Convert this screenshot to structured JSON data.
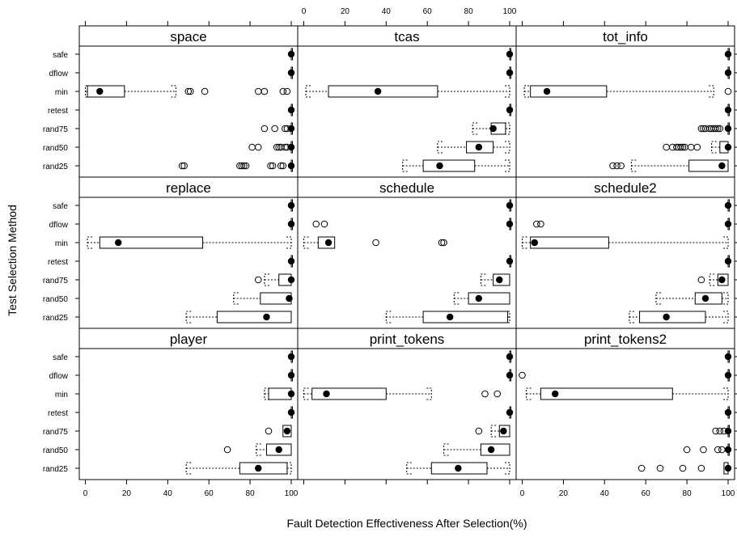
{
  "chart_data": {
    "type": "boxplot",
    "xlabel": "Fault Detection Effectiveness After Selection(%)",
    "ylabel": "Test Selection Method",
    "xlim": [
      -3,
      103
    ],
    "x_ticks": [
      0,
      20,
      40,
      60,
      80,
      100
    ],
    "methods": [
      "safe",
      "dflow",
      "min",
      "retest",
      "rand75",
      "rand50",
      "rand25"
    ],
    "legend": "none",
    "grid": false,
    "panels": [
      {
        "title": "space",
        "boxes": [
          {
            "method": "safe",
            "median": 100,
            "q1": 100,
            "q3": 100,
            "whisker_low": 100,
            "whisker_high": 100,
            "outliers": []
          },
          {
            "method": "dflow",
            "median": 100,
            "q1": 100,
            "q3": 100,
            "whisker_low": 100,
            "whisker_high": 100,
            "outliers": []
          },
          {
            "method": "min",
            "median": 7,
            "q1": 1,
            "q3": 19,
            "whisker_low": 0,
            "whisker_high": 44,
            "outliers": [
              50,
              51,
              58,
              84,
              87,
              96,
              98
            ]
          },
          {
            "method": "retest",
            "median": 100,
            "q1": 100,
            "q3": 100,
            "whisker_low": 100,
            "whisker_high": 100,
            "outliers": []
          },
          {
            "method": "rand75",
            "median": 100,
            "q1": 100,
            "q3": 100,
            "whisker_low": 100,
            "whisker_high": 100,
            "outliers": [
              87,
              92,
              97,
              98
            ]
          },
          {
            "method": "rand50",
            "median": 100,
            "q1": 100,
            "q3": 100,
            "whisker_low": 100,
            "whisker_high": 100,
            "outliers": [
              81,
              84,
              93,
              94,
              95,
              97,
              98
            ]
          },
          {
            "method": "rand25",
            "median": 100,
            "q1": 100,
            "q3": 100,
            "whisker_low": 100,
            "whisker_high": 100,
            "outliers": [
              47,
              48,
              75,
              76,
              77,
              78,
              90,
              91,
              95,
              96
            ]
          }
        ]
      },
      {
        "title": "tcas",
        "boxes": [
          {
            "method": "safe",
            "median": 100,
            "q1": 100,
            "q3": 100,
            "whisker_low": 100,
            "whisker_high": 100,
            "outliers": []
          },
          {
            "method": "dflow",
            "median": 100,
            "q1": 100,
            "q3": 100,
            "whisker_low": 100,
            "whisker_high": 100,
            "outliers": []
          },
          {
            "method": "min",
            "median": 36,
            "q1": 12,
            "q3": 65,
            "whisker_low": 1,
            "whisker_high": 100,
            "outliers": []
          },
          {
            "method": "retest",
            "median": 100,
            "q1": 100,
            "q3": 100,
            "whisker_low": 100,
            "whisker_high": 100,
            "outliers": []
          },
          {
            "method": "rand75",
            "median": 92,
            "q1": 91,
            "q3": 98,
            "whisker_low": 82,
            "whisker_high": 100,
            "outliers": []
          },
          {
            "method": "rand50",
            "median": 85,
            "q1": 79,
            "q3": 92,
            "whisker_low": 65,
            "whisker_high": 100,
            "outliers": []
          },
          {
            "method": "rand25",
            "median": 66,
            "q1": 58,
            "q3": 83,
            "whisker_low": 48,
            "whisker_high": 100,
            "outliers": []
          }
        ]
      },
      {
        "title": "tot_info",
        "boxes": [
          {
            "method": "safe",
            "median": 100,
            "q1": 100,
            "q3": 100,
            "whisker_low": 100,
            "whisker_high": 100,
            "outliers": []
          },
          {
            "method": "dflow",
            "median": 100,
            "q1": 100,
            "q3": 100,
            "whisker_low": 100,
            "whisker_high": 100,
            "outliers": []
          },
          {
            "method": "min",
            "median": 12,
            "q1": 4,
            "q3": 41,
            "whisker_low": 1,
            "whisker_high": 93,
            "outliers": [
              100
            ]
          },
          {
            "method": "retest",
            "median": 100,
            "q1": 100,
            "q3": 100,
            "whisker_low": 100,
            "whisker_high": 100,
            "outliers": []
          },
          {
            "method": "rand75",
            "median": 100,
            "q1": 100,
            "q3": 100,
            "whisker_low": 100,
            "whisker_high": 100,
            "outliers": [
              87,
              88,
              89,
              91,
              92,
              93,
              94,
              95,
              96
            ]
          },
          {
            "method": "rand50",
            "median": 100,
            "q1": 96,
            "q3": 100,
            "whisker_low": 92,
            "whisker_high": 100,
            "outliers": [
              70,
              73,
              75,
              76,
              77,
              78,
              79,
              82,
              85
            ]
          },
          {
            "method": "rand25",
            "median": 97,
            "q1": 81,
            "q3": 100,
            "whisker_low": 53,
            "whisker_high": 100,
            "outliers": [
              44,
              46,
              48
            ]
          }
        ]
      },
      {
        "title": "replace",
        "boxes": [
          {
            "method": "safe",
            "median": 100,
            "q1": 100,
            "q3": 100,
            "whisker_low": 100,
            "whisker_high": 100,
            "outliers": []
          },
          {
            "method": "dflow",
            "median": 100,
            "q1": 100,
            "q3": 100,
            "whisker_low": 100,
            "whisker_high": 100,
            "outliers": []
          },
          {
            "method": "min",
            "median": 16,
            "q1": 7,
            "q3": 57,
            "whisker_low": 1,
            "whisker_high": 100,
            "outliers": []
          },
          {
            "method": "retest",
            "median": 100,
            "q1": 100,
            "q3": 100,
            "whisker_low": 100,
            "whisker_high": 100,
            "outliers": []
          },
          {
            "method": "rand75",
            "median": 100,
            "q1": 94,
            "q3": 100,
            "whisker_low": 87,
            "whisker_high": 100,
            "outliers": [
              84
            ]
          },
          {
            "method": "rand50",
            "median": 99,
            "q1": 85,
            "q3": 100,
            "whisker_low": 72,
            "whisker_high": 100,
            "outliers": []
          },
          {
            "method": "rand25",
            "median": 88,
            "q1": 64,
            "q3": 100,
            "whisker_low": 49,
            "whisker_high": 100,
            "outliers": []
          }
        ]
      },
      {
        "title": "schedule",
        "boxes": [
          {
            "method": "safe",
            "median": 100,
            "q1": 100,
            "q3": 100,
            "whisker_low": 100,
            "whisker_high": 100,
            "outliers": []
          },
          {
            "method": "dflow",
            "median": 100,
            "q1": 100,
            "q3": 100,
            "whisker_low": 100,
            "whisker_high": 100,
            "outliers": [
              6,
              10
            ]
          },
          {
            "method": "min",
            "median": 12,
            "q1": 7,
            "q3": 15,
            "whisker_low": 0,
            "whisker_high": 15,
            "outliers": [
              35,
              67,
              68
            ]
          },
          {
            "method": "retest",
            "median": 100,
            "q1": 100,
            "q3": 100,
            "whisker_low": 100,
            "whisker_high": 100,
            "outliers": []
          },
          {
            "method": "rand75",
            "median": 95,
            "q1": 92,
            "q3": 100,
            "whisker_low": 86,
            "whisker_high": 100,
            "outliers": []
          },
          {
            "method": "rand50",
            "median": 85,
            "q1": 80,
            "q3": 100,
            "whisker_low": 73,
            "whisker_high": 100,
            "outliers": []
          },
          {
            "method": "rand25",
            "median": 71,
            "q1": 58,
            "q3": 99,
            "whisker_low": 40,
            "whisker_high": 100,
            "outliers": []
          }
        ]
      },
      {
        "title": "schedule2",
        "boxes": [
          {
            "method": "safe",
            "median": 100,
            "q1": 100,
            "q3": 100,
            "whisker_low": 100,
            "whisker_high": 100,
            "outliers": []
          },
          {
            "method": "dflow",
            "median": 100,
            "q1": 100,
            "q3": 100,
            "whisker_low": 100,
            "whisker_high": 100,
            "outliers": [
              7,
              9
            ]
          },
          {
            "method": "min",
            "median": 6,
            "q1": 4,
            "q3": 42,
            "whisker_low": 0,
            "whisker_high": 100,
            "outliers": []
          },
          {
            "method": "retest",
            "median": 100,
            "q1": 100,
            "q3": 100,
            "whisker_low": 100,
            "whisker_high": 100,
            "outliers": []
          },
          {
            "method": "rand75",
            "median": 97,
            "q1": 95,
            "q3": 100,
            "whisker_low": 91,
            "whisker_high": 100,
            "outliers": [
              87
            ]
          },
          {
            "method": "rand50",
            "median": 89,
            "q1": 84,
            "q3": 97,
            "whisker_low": 65,
            "whisker_high": 100,
            "outliers": []
          },
          {
            "method": "rand25",
            "median": 70,
            "q1": 57,
            "q3": 89,
            "whisker_low": 52,
            "whisker_high": 100,
            "outliers": []
          }
        ]
      },
      {
        "title": "player",
        "boxes": [
          {
            "method": "safe",
            "median": 100,
            "q1": 100,
            "q3": 100,
            "whisker_low": 100,
            "whisker_high": 100,
            "outliers": []
          },
          {
            "method": "dflow",
            "median": 100,
            "q1": 100,
            "q3": 100,
            "whisker_low": 100,
            "whisker_high": 100,
            "outliers": []
          },
          {
            "method": "min",
            "median": 100,
            "q1": 89,
            "q3": 100,
            "whisker_low": 87,
            "whisker_high": 100,
            "outliers": []
          },
          {
            "method": "retest",
            "median": 100,
            "q1": 100,
            "q3": 100,
            "whisker_low": 100,
            "whisker_high": 100,
            "outliers": []
          },
          {
            "method": "rand75",
            "median": 98,
            "q1": 96,
            "q3": 100,
            "whisker_low": 96,
            "whisker_high": 100,
            "outliers": [
              89
            ]
          },
          {
            "method": "rand50",
            "median": 94,
            "q1": 88,
            "q3": 100,
            "whisker_low": 83,
            "whisker_high": 100,
            "outliers": [
              69
            ]
          },
          {
            "method": "rand25",
            "median": 84,
            "q1": 75,
            "q3": 98,
            "whisker_low": 49,
            "whisker_high": 100,
            "outliers": []
          }
        ]
      },
      {
        "title": "print_tokens",
        "boxes": [
          {
            "method": "safe",
            "median": 100,
            "q1": 100,
            "q3": 100,
            "whisker_low": 100,
            "whisker_high": 100,
            "outliers": []
          },
          {
            "method": "dflow",
            "median": 100,
            "q1": 100,
            "q3": 100,
            "whisker_low": 100,
            "whisker_high": 100,
            "outliers": []
          },
          {
            "method": "min",
            "median": 11,
            "q1": 4,
            "q3": 40,
            "whisker_low": 0,
            "whisker_high": 62,
            "outliers": [
              88,
              94
            ]
          },
          {
            "method": "retest",
            "median": 100,
            "q1": 100,
            "q3": 100,
            "whisker_low": 100,
            "whisker_high": 100,
            "outliers": []
          },
          {
            "method": "rand75",
            "median": 97,
            "q1": 95,
            "q3": 100,
            "whisker_low": 91,
            "whisker_high": 100,
            "outliers": [
              85
            ]
          },
          {
            "method": "rand50",
            "median": 91,
            "q1": 86,
            "q3": 100,
            "whisker_low": 68,
            "whisker_high": 100,
            "outliers": []
          },
          {
            "method": "rand25",
            "median": 75,
            "q1": 62,
            "q3": 89,
            "whisker_low": 50,
            "whisker_high": 100,
            "outliers": []
          }
        ]
      },
      {
        "title": "print_tokens2",
        "boxes": [
          {
            "method": "safe",
            "median": 100,
            "q1": 100,
            "q3": 100,
            "whisker_low": 100,
            "whisker_high": 100,
            "outliers": []
          },
          {
            "method": "dflow",
            "median": 100,
            "q1": 100,
            "q3": 100,
            "whisker_low": 100,
            "whisker_high": 100,
            "outliers": [
              0
            ]
          },
          {
            "method": "min",
            "median": 16,
            "q1": 9,
            "q3": 73,
            "whisker_low": 2,
            "whisker_high": 100,
            "outliers": []
          },
          {
            "method": "retest",
            "median": 100,
            "q1": 100,
            "q3": 100,
            "whisker_low": 100,
            "whisker_high": 100,
            "outliers": []
          },
          {
            "method": "rand75",
            "median": 100,
            "q1": 100,
            "q3": 100,
            "whisker_low": 100,
            "whisker_high": 100,
            "outliers": [
              94,
              96,
              98
            ]
          },
          {
            "method": "rand50",
            "median": 100,
            "q1": 100,
            "q3": 100,
            "whisker_low": 100,
            "whisker_high": 100,
            "outliers": [
              80,
              88,
              95,
              97
            ]
          },
          {
            "method": "rand25",
            "median": 100,
            "q1": 98,
            "q3": 100,
            "whisker_low": 98,
            "whisker_high": 100,
            "outliers": [
              58,
              67,
              78,
              87
            ]
          }
        ]
      }
    ]
  }
}
